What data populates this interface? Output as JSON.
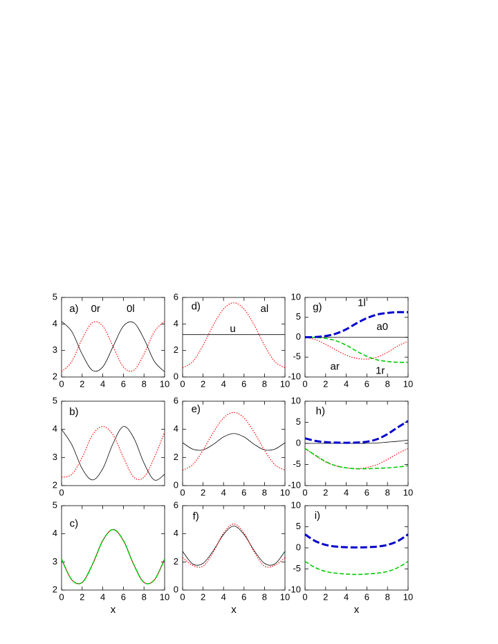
{
  "chart_data": [
    {
      "type": "line",
      "annotations": [
        "a)",
        "0r",
        "0l"
      ],
      "x": [
        0,
        1,
        2,
        3,
        4,
        5,
        6,
        7,
        8,
        9,
        10
      ],
      "xlim": [
        0,
        10
      ],
      "xticks": [
        0,
        2,
        4,
        6,
        8,
        10
      ],
      "ylim": [
        2,
        5
      ],
      "yticks": [
        2,
        3,
        4,
        5
      ],
      "series": [
        {
          "color": "#000000",
          "style": "solid",
          "values": [
            4.1,
            3.71,
            2.86,
            2.25,
            2.38,
            3.15,
            3.92,
            4.05,
            3.44,
            2.59,
            2.2
          ]
        },
        {
          "color": "#ff0000",
          "style": "dotted",
          "values": [
            2.2,
            2.59,
            3.44,
            4.05,
            3.92,
            3.15,
            2.38,
            2.25,
            2.86,
            3.71,
            4.1
          ]
        }
      ]
    },
    {
      "type": "line",
      "annotations": [
        "d)",
        "al",
        "u"
      ],
      "x": [
        0,
        1,
        2,
        3,
        4,
        5,
        6,
        7,
        8,
        9,
        10
      ],
      "xlim": [
        0,
        10
      ],
      "xticks": [
        0,
        2,
        4,
        6,
        8,
        10
      ],
      "ylim": [
        0,
        6
      ],
      "yticks": [
        0,
        2,
        4,
        6
      ],
      "series": [
        {
          "color": "#000000",
          "style": "solid",
          "values": [
            3.2,
            3.2,
            3.2,
            3.2,
            3.2,
            3.2,
            3.2,
            3.2,
            3.2,
            3.2,
            3.2
          ]
        },
        {
          "color": "#ff0000",
          "style": "dotted",
          "values": [
            0.7,
            1.17,
            2.39,
            3.91,
            5.13,
            5.6,
            5.13,
            3.91,
            2.39,
            1.17,
            0.7
          ]
        }
      ]
    },
    {
      "type": "line",
      "annotations": [
        "g)",
        "1l",
        "a0",
        "ar",
        "1r"
      ],
      "x": [
        0,
        1,
        2,
        3,
        4,
        5,
        6,
        7,
        8,
        9,
        10
      ],
      "xlim": [
        0,
        10
      ],
      "xticks": [
        0,
        2,
        4,
        6,
        8,
        10
      ],
      "ylim": [
        -10,
        10
      ],
      "yticks": [
        -10,
        -5,
        0,
        5,
        10
      ],
      "series": [
        {
          "color": "#000000",
          "style": "solid",
          "values": [
            0,
            0,
            0,
            0,
            0,
            0,
            0,
            0,
            0,
            0,
            0
          ]
        },
        {
          "color": "#ff0000",
          "style": "dotted",
          "values": [
            0,
            -0.6,
            -1.8,
            -3.2,
            -4.5,
            -5.3,
            -5.5,
            -5.0,
            -3.8,
            -2.2,
            -1.0
          ]
        },
        {
          "color": "#00cc00",
          "style": "dashed",
          "values": [
            0,
            -0.05,
            -0.3,
            -0.9,
            -2.0,
            -3.5,
            -4.8,
            -5.7,
            -6.1,
            -6.3,
            -6.3
          ]
        },
        {
          "color": "#0000cc",
          "style": "long-dashed",
          "values": [
            0,
            0.05,
            0.3,
            0.9,
            2.0,
            3.5,
            4.8,
            5.7,
            6.1,
            6.3,
            6.3
          ]
        }
      ]
    },
    {
      "type": "line",
      "annotations": [
        "b)"
      ],
      "x": [
        0,
        1,
        2,
        3,
        4,
        5,
        6,
        7,
        8,
        9,
        10
      ],
      "xlim": [
        0,
        10
      ],
      "xticks": [
        0
      ],
      "ylim": [
        2,
        5
      ],
      "yticks": [
        2,
        3,
        4,
        5
      ],
      "series": [
        {
          "color": "#000000",
          "style": "solid",
          "values": [
            4.0,
            3.45,
            2.6,
            2.2,
            2.6,
            3.5,
            4.1,
            3.7,
            2.8,
            2.2,
            2.4
          ]
        },
        {
          "color": "#ff0000",
          "style": "dotted",
          "values": [
            2.3,
            2.4,
            3.0,
            3.8,
            4.1,
            3.8,
            3.0,
            2.3,
            2.3,
            3.0,
            3.9
          ]
        }
      ]
    },
    {
      "type": "line",
      "annotations": [
        "e)"
      ],
      "x": [
        0,
        1,
        2,
        3,
        4,
        5,
        6,
        7,
        8,
        9,
        10
      ],
      "xlim": [
        0,
        10
      ],
      "xticks": [
        0,
        2,
        4,
        6,
        8,
        10
      ],
      "ylim": [
        0,
        6
      ],
      "yticks": [
        0,
        2,
        4,
        6
      ],
      "series": [
        {
          "color": "#000000",
          "style": "solid",
          "values": [
            3.05,
            2.59,
            2.54,
            2.93,
            3.46,
            3.7,
            3.46,
            2.93,
            2.54,
            2.59,
            3.05
          ]
        },
        {
          "color": "#ff0000",
          "style": "dotted",
          "values": [
            1.1,
            1.49,
            2.52,
            3.78,
            4.81,
            5.2,
            4.81,
            3.78,
            2.52,
            1.49,
            1.1
          ]
        }
      ]
    },
    {
      "type": "line",
      "annotations": [
        "h)"
      ],
      "x": [
        0,
        1,
        2,
        3,
        4,
        5,
        6,
        7,
        8,
        9,
        10
      ],
      "xlim": [
        0,
        10
      ],
      "xticks": [
        0,
        2,
        4,
        6,
        8,
        10
      ],
      "ylim": [
        -10,
        10
      ],
      "yticks": [
        -10,
        -5,
        0,
        5,
        10
      ],
      "series": [
        {
          "color": "#000000",
          "style": "solid",
          "values": [
            0,
            0,
            0,
            0,
            0,
            0,
            0,
            0.1,
            0.3,
            0.5,
            0.8
          ]
        },
        {
          "color": "#ff0000",
          "style": "dotted",
          "values": [
            -1.2,
            -2.9,
            -4.4,
            -5.3,
            -5.8,
            -6.0,
            -5.7,
            -5.0,
            -3.8,
            -2.4,
            -1.2
          ]
        },
        {
          "color": "#00cc00",
          "style": "dashed",
          "values": [
            -1.2,
            -2.8,
            -4.3,
            -5.3,
            -5.8,
            -6.0,
            -6.0,
            -5.9,
            -5.8,
            -5.6,
            -5.3
          ]
        },
        {
          "color": "#0000cc",
          "style": "long-dashed",
          "values": [
            1.2,
            0.6,
            0.3,
            0.2,
            0.15,
            0.2,
            0.4,
            1.0,
            2.2,
            3.8,
            5.3
          ]
        }
      ]
    },
    {
      "type": "line",
      "annotations": [
        "c)"
      ],
      "xlabel": "x",
      "x": [
        0,
        1,
        2,
        3,
        4,
        5,
        6,
        7,
        8,
        9,
        10
      ],
      "xlim": [
        0,
        10
      ],
      "xticks": [
        0,
        2,
        4,
        6,
        8,
        10
      ],
      "ylim": [
        2,
        5
      ],
      "yticks": [
        2,
        3,
        4,
        5
      ],
      "series": [
        {
          "color": "#000000",
          "style": "solid",
          "values": [
            3.1,
            2.36,
            2.27,
            2.91,
            3.76,
            4.15,
            3.76,
            2.91,
            2.27,
            2.36,
            3.1
          ]
        },
        {
          "color": "#ff0000",
          "style": "dotted",
          "values": [
            3.1,
            2.36,
            2.27,
            2.91,
            3.76,
            4.15,
            3.76,
            2.91,
            2.27,
            2.36,
            3.1
          ]
        },
        {
          "color": "#00cc00",
          "style": "dashed",
          "values": [
            3.1,
            2.36,
            2.27,
            2.91,
            3.76,
            4.15,
            3.76,
            2.91,
            2.27,
            2.36,
            3.1
          ]
        }
      ]
    },
    {
      "type": "line",
      "annotations": [
        "f)"
      ],
      "xlabel": "x",
      "x": [
        0,
        1,
        2,
        3,
        4,
        5,
        6,
        7,
        8,
        9,
        10
      ],
      "xlim": [
        0,
        10
      ],
      "xticks": [
        0,
        2,
        4,
        6,
        8,
        10
      ],
      "ylim": [
        0,
        6
      ],
      "yticks": [
        0,
        2,
        4,
        6
      ],
      "series": [
        {
          "color": "#000000",
          "style": "solid",
          "values": [
            2.75,
            1.85,
            1.9,
            2.8,
            3.95,
            4.55,
            3.95,
            2.8,
            1.9,
            1.85,
            2.75
          ]
        },
        {
          "color": "#ff0000",
          "style": "dotted",
          "values": [
            2.3,
            1.75,
            1.7,
            2.7,
            4.05,
            4.7,
            4.05,
            2.7,
            1.7,
            1.75,
            2.3
          ]
        }
      ]
    },
    {
      "type": "line",
      "annotations": [
        "i)"
      ],
      "xlabel": "x",
      "x": [
        0,
        1,
        2,
        3,
        4,
        5,
        6,
        7,
        8,
        9,
        10
      ],
      "xlim": [
        0,
        10
      ],
      "xticks": [
        0,
        2,
        4,
        6,
        8,
        10
      ],
      "ylim": [
        -10,
        10
      ],
      "yticks": [
        -10,
        -5,
        0,
        5,
        10
      ],
      "series": [
        {
          "color": "#00cc00",
          "style": "dashed",
          "values": [
            -3.2,
            -4.7,
            -5.6,
            -6.0,
            -6.2,
            -6.3,
            -6.2,
            -6.0,
            -5.6,
            -4.7,
            -3.2
          ]
        },
        {
          "color": "#0000cc",
          "style": "long-dashed",
          "values": [
            3.2,
            1.6,
            0.7,
            0.3,
            0.15,
            0.1,
            0.15,
            0.3,
            0.7,
            1.6,
            3.2
          ]
        }
      ]
    }
  ]
}
